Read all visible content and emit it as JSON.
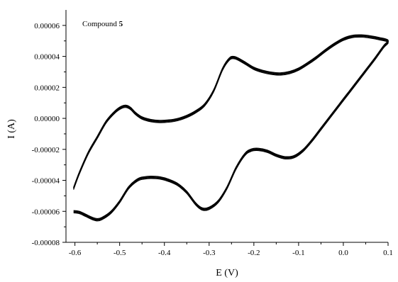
{
  "chart_data": {
    "type": "line",
    "title": "",
    "xlabel": "E (V)",
    "ylabel": "I (A)",
    "xlim": [
      -0.62,
      0.1
    ],
    "ylim": [
      -8e-05,
      7e-05
    ],
    "x_ticks": [
      -0.6,
      -0.5,
      -0.4,
      -0.3,
      -0.2,
      -0.1,
      0.0,
      0.1
    ],
    "x_tick_labels": [
      "-0.6",
      "-0.5",
      "-0.4",
      "-0.3",
      "-0.2",
      "-0.1",
      "0.0",
      "0.1"
    ],
    "y_ticks": [
      -8e-05,
      -6e-05,
      -4e-05,
      -2e-05,
      0.0,
      2e-05,
      4e-05,
      6e-05
    ],
    "y_tick_labels": [
      "-0.00008",
      "-0.00006",
      "-0.00004",
      "-0.00002",
      "0.00000",
      "0.00002",
      "0.00004",
      "0.00006"
    ],
    "annotation": {
      "text": "Compound ",
      "bold": "5"
    },
    "grid": false,
    "legend": "none",
    "line_color": "#000000",
    "series": [
      {
        "x": [
          -0.603,
          -0.59,
          -0.57,
          -0.55,
          -0.53,
          -0.51,
          -0.495,
          -0.485,
          -0.475,
          -0.465,
          -0.45,
          -0.43,
          -0.41,
          -0.39,
          -0.37,
          -0.35,
          -0.33,
          -0.31,
          -0.29,
          -0.27,
          -0.255,
          -0.245,
          -0.235,
          -0.22,
          -0.2,
          -0.18,
          -0.16,
          -0.14,
          -0.12,
          -0.1,
          -0.08,
          -0.06,
          -0.04,
          -0.02,
          0.0,
          0.02,
          0.04,
          0.06,
          0.08,
          0.1,
          0.09,
          0.07,
          0.05,
          0.03,
          0.01,
          -0.01,
          -0.03,
          -0.05,
          -0.07,
          -0.09,
          -0.11,
          -0.13,
          -0.15,
          -0.17,
          -0.19,
          -0.205,
          -0.22,
          -0.24,
          -0.26,
          -0.28,
          -0.3,
          -0.315,
          -0.33,
          -0.35,
          -0.37,
          -0.39,
          -0.41,
          -0.43,
          -0.445,
          -0.46,
          -0.48,
          -0.5,
          -0.52,
          -0.54,
          -0.55,
          -0.56,
          -0.575,
          -0.59,
          -0.603
        ],
        "y": [
          -4.5e-05,
          -3.5e-05,
          -2.2e-05,
          -1.2e-05,
          -2e-06,
          4.5e-06,
          7.5e-06,
          8e-06,
          6.5e-06,
          3.5e-06,
          5e-07,
          -1.2e-06,
          -1.8e-06,
          -1.5e-06,
          -5e-07,
          1.5e-06,
          4.5e-06,
          9e-06,
          1.8e-05,
          3.2e-05,
          3.85e-05,
          3.95e-05,
          3.85e-05,
          3.6e-05,
          3.25e-05,
          3.05e-05,
          2.93e-05,
          2.89e-05,
          2.98e-05,
          3.2e-05,
          3.55e-05,
          3.95e-05,
          4.4e-05,
          4.8e-05,
          5.13e-05,
          5.31e-05,
          5.34e-05,
          5.28e-05,
          5.17e-05,
          5e-05,
          4.65e-05,
          3.85e-05,
          3.1e-05,
          2.35e-05,
          1.6e-05,
          8.5e-06,
          1e-06,
          -6.5e-06,
          -1.4e-05,
          -2.05e-05,
          -2.45e-05,
          -2.52e-05,
          -2.36e-05,
          -2.1e-05,
          -1.98e-05,
          -2.02e-05,
          -2.3e-05,
          -3.2e-05,
          -4.45e-05,
          -5.35e-05,
          -5.78e-05,
          -5.83e-05,
          -5.5e-05,
          -4.75e-05,
          -4.25e-05,
          -3.98e-05,
          -3.82e-05,
          -3.78e-05,
          -3.82e-05,
          -3.95e-05,
          -4.45e-05,
          -5.35e-05,
          -6.05e-05,
          -6.45e-05,
          -6.52e-05,
          -6.45e-05,
          -6.25e-05,
          -6.05e-05,
          -6e-05
        ]
      }
    ]
  }
}
